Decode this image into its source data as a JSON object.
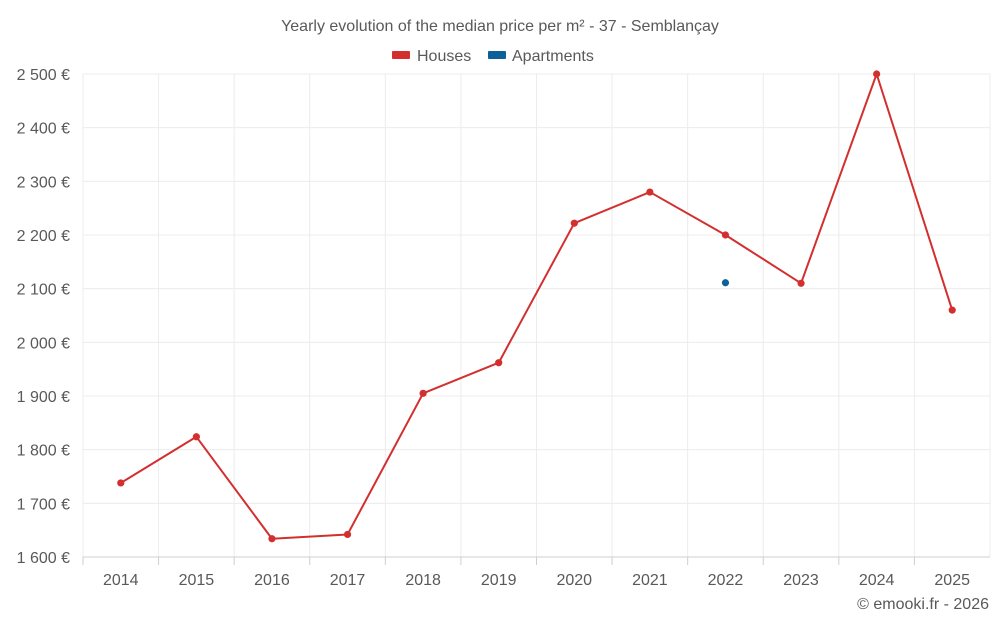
{
  "chart_data": {
    "type": "line",
    "title": "Yearly evolution of the median price per m² - 37 - Semblançay",
    "categories": [
      "2014",
      "2015",
      "2016",
      "2017",
      "2018",
      "2019",
      "2020",
      "2021",
      "2022",
      "2023",
      "2024",
      "2025"
    ],
    "series": [
      {
        "name": "Houses",
        "color": "#d32f2f",
        "values": [
          1738,
          1824,
          1634,
          1642,
          1905,
          1962,
          2222,
          2280,
          2200,
          2110,
          2500,
          2060
        ]
      },
      {
        "name": "Apartments",
        "color": "#0d6199",
        "values": [
          null,
          null,
          null,
          null,
          null,
          null,
          null,
          null,
          2111,
          null,
          null,
          null
        ]
      }
    ],
    "yticks": [
      "1 600 €",
      "1 700 €",
      "1 800 €",
      "1 900 €",
      "2 000 €",
      "2 100 €",
      "2 200 €",
      "2 300 €",
      "2 400 €",
      "2 500 €"
    ],
    "ylim": [
      1600,
      2500
    ],
    "xlabel": "",
    "ylabel": "",
    "legend_position": "top-center",
    "grid": true
  },
  "credit": "© emooki.fr - 2026"
}
